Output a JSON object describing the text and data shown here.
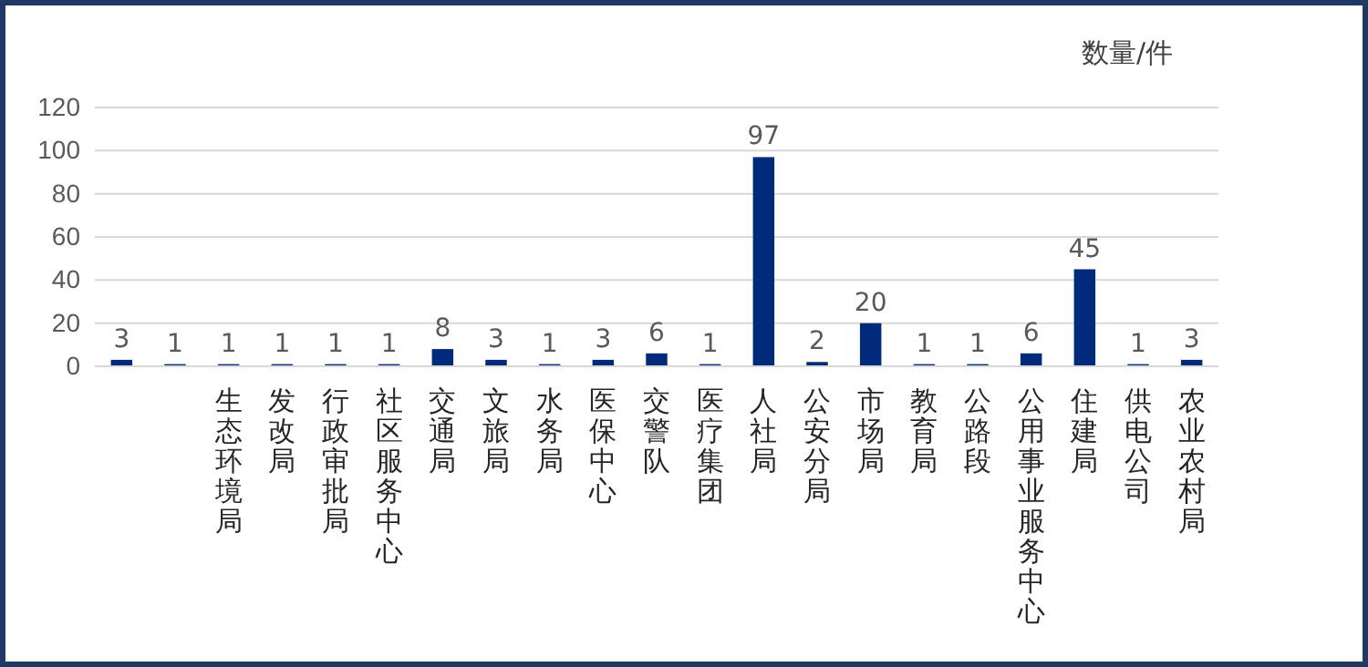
{
  "chart_data": {
    "type": "bar",
    "ylabel": "数量/件",
    "categories": [
      null,
      null,
      "生态环境局",
      "发改局",
      "行政审批局",
      "社区服务中心",
      "交通局",
      "文旅局",
      "水务局",
      "医保中心",
      "交警队",
      "医疗集团",
      "人社局",
      "公安分局",
      "市场局",
      "教育局",
      "公路段",
      "公用事业服务中心",
      "住建局",
      "供电公司",
      "农业农村局"
    ],
    "values": [
      3,
      1,
      1,
      1,
      1,
      1,
      8,
      3,
      1,
      3,
      6,
      1,
      97,
      2,
      20,
      1,
      1,
      6,
      45,
      1,
      3
    ],
    "color": "#002a7a",
    "ylim": [
      0,
      120
    ],
    "yticks": [
      0,
      20,
      40,
      60,
      80,
      100,
      120
    ],
    "grid": "y",
    "data_labels": true
  }
}
